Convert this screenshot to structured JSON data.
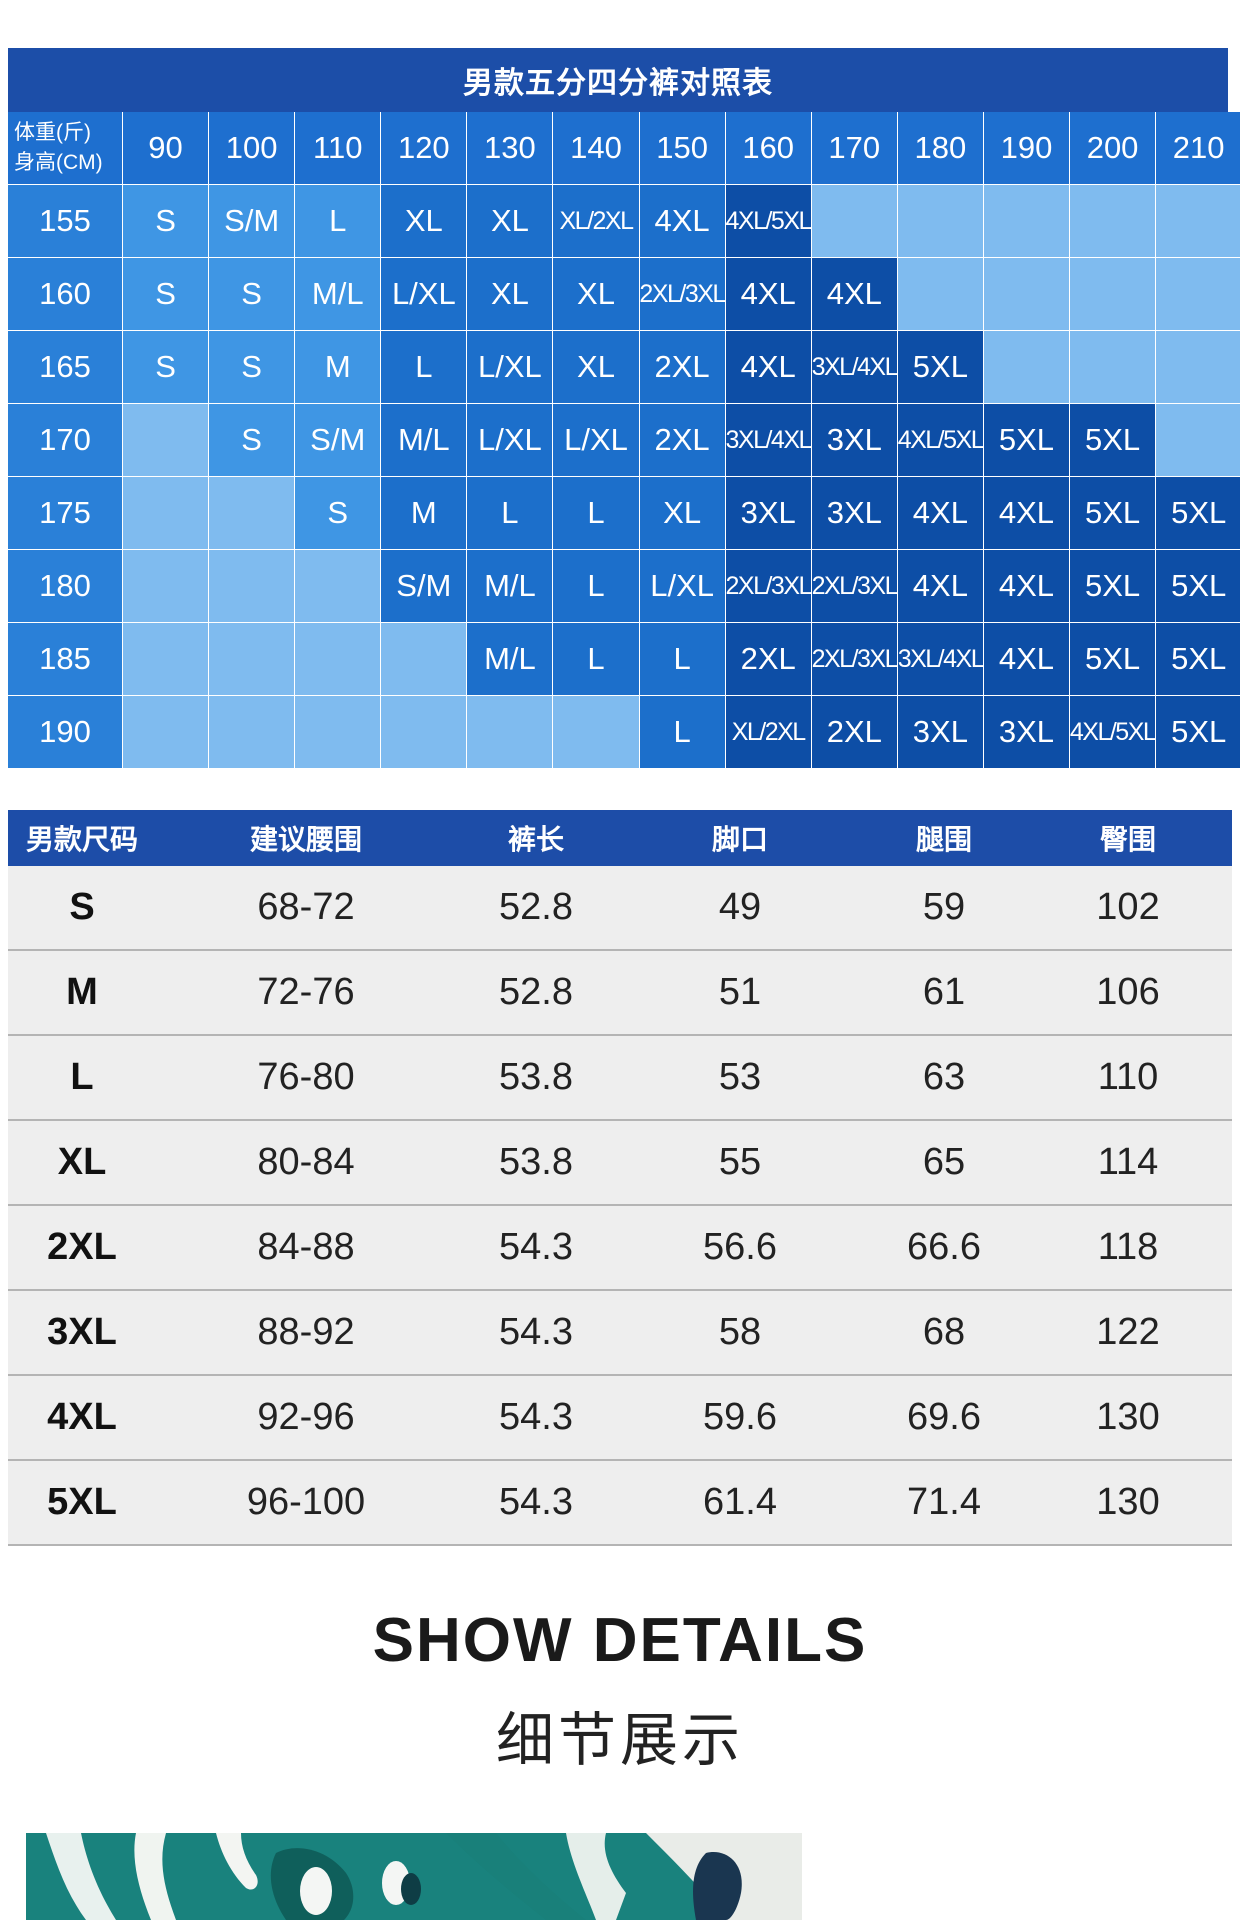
{
  "colors": {
    "level1": "#7fbbef",
    "level2": "#3f96e4",
    "level3": "#1c6fcb",
    "level4": "#0d4ea6"
  },
  "size_chart": {
    "title": "男款五分四分裤对照表",
    "corner": {
      "weight_label": "体重(斤)",
      "height_label": "身高(CM)"
    },
    "weights": [
      "90",
      "100",
      "110",
      "120",
      "130",
      "140",
      "150",
      "160",
      "170",
      "180",
      "190",
      "200",
      "210"
    ],
    "rows": [
      {
        "height": "155",
        "cells": [
          "S",
          "S/M",
          "L",
          "XL",
          "XL",
          "XL/2XL",
          "4XL",
          "4XL/5XL",
          "",
          "",
          "",
          "",
          ""
        ]
      },
      {
        "height": "160",
        "cells": [
          "S",
          "S",
          "M/L",
          "L/XL",
          "XL",
          "XL",
          "2XL/3XL",
          "4XL",
          "4XL",
          "",
          "",
          "",
          ""
        ]
      },
      {
        "height": "165",
        "cells": [
          "S",
          "S",
          "M",
          "L",
          "L/XL",
          "XL",
          "2XL",
          "4XL",
          "3XL/4XL",
          "5XL",
          "",
          "",
          ""
        ]
      },
      {
        "height": "170",
        "cells": [
          "",
          "S",
          "S/M",
          "M/L",
          "L/XL",
          "L/XL",
          "2XL",
          "3XL/4XL",
          "3XL",
          "4XL/5XL",
          "5XL",
          "5XL",
          ""
        ]
      },
      {
        "height": "175",
        "cells": [
          "",
          "",
          "S",
          "M",
          "L",
          "L",
          "XL",
          "3XL",
          "3XL",
          "4XL",
          "4XL",
          "5XL",
          "5XL"
        ]
      },
      {
        "height": "180",
        "cells": [
          "",
          "",
          "",
          "S/M",
          "M/L",
          "L",
          "L/XL",
          "2XL/3XL",
          "2XL/3XL",
          "4XL",
          "4XL",
          "5XL",
          "5XL"
        ]
      },
      {
        "height": "185",
        "cells": [
          "",
          "",
          "",
          "",
          "M/L",
          "L",
          "L",
          "2XL",
          "2XL/3XL",
          "3XL/4XL",
          "4XL",
          "5XL",
          "5XL"
        ]
      },
      {
        "height": "190",
        "cells": [
          "",
          "",
          "",
          "",
          "",
          "",
          "L",
          "XL/2XL",
          "2XL",
          "3XL",
          "3XL",
          "4XL/5XL",
          "5XL"
        ]
      }
    ],
    "shades": [
      [
        2,
        2,
        2,
        3,
        3,
        3,
        3,
        4,
        1,
        1,
        1,
        1,
        1
      ],
      [
        2,
        2,
        2,
        3,
        3,
        3,
        3,
        4,
        4,
        1,
        1,
        1,
        1
      ],
      [
        2,
        2,
        2,
        3,
        3,
        3,
        3,
        4,
        4,
        4,
        1,
        1,
        1
      ],
      [
        1,
        2,
        2,
        3,
        3,
        3,
        3,
        4,
        4,
        4,
        4,
        4,
        1
      ],
      [
        1,
        1,
        2,
        3,
        3,
        3,
        3,
        4,
        4,
        4,
        4,
        4,
        4
      ],
      [
        1,
        1,
        1,
        3,
        3,
        3,
        3,
        4,
        4,
        4,
        4,
        4,
        4
      ],
      [
        1,
        1,
        1,
        1,
        3,
        3,
        3,
        4,
        4,
        4,
        4,
        4,
        4
      ],
      [
        1,
        1,
        1,
        1,
        1,
        1,
        3,
        4,
        4,
        4,
        4,
        4,
        4
      ]
    ]
  },
  "measurements": {
    "headers": [
      "男款尺码",
      "建议腰围",
      "裤长",
      "脚口",
      "腿围",
      "臀围"
    ],
    "rows": [
      [
        "S",
        "68-72",
        "52.8",
        "49",
        "59",
        "102"
      ],
      [
        "M",
        "72-76",
        "52.8",
        "51",
        "61",
        "106"
      ],
      [
        "L",
        "76-80",
        "53.8",
        "53",
        "63",
        "110"
      ],
      [
        "XL",
        "80-84",
        "53.8",
        "55",
        "65",
        "114"
      ],
      [
        "2XL",
        "84-88",
        "54.3",
        "56.6",
        "66.6",
        "118"
      ],
      [
        "3XL",
        "88-92",
        "54.3",
        "58",
        "68",
        "122"
      ],
      [
        "4XL",
        "92-96",
        "54.3",
        "59.6",
        "69.6",
        "130"
      ],
      [
        "5XL",
        "96-100",
        "54.3",
        "61.4",
        "71.4",
        "130"
      ]
    ]
  },
  "details": {
    "title": "SHOW DETAILS",
    "subtitle": "细节展示"
  }
}
